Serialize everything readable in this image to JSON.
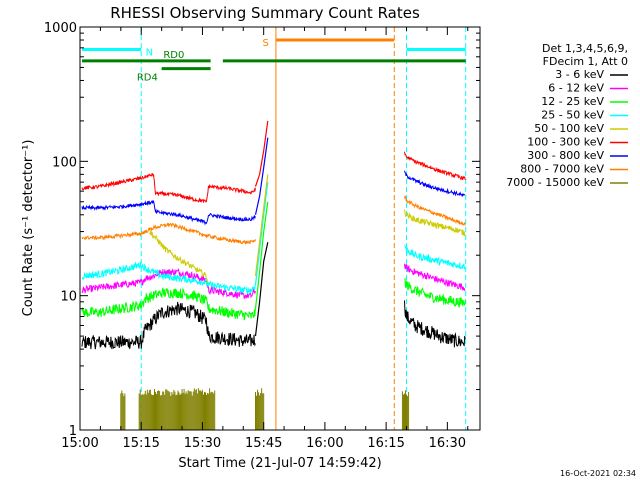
{
  "chart_data": {
    "type": "line",
    "title": "RHESSI Observing Summary Count Rates",
    "xlabel": "Start Time (21-Jul-07 14:59:42)",
    "ylabel": "Count Rate (s⁻¹ detector⁻¹)",
    "yscale": "log",
    "ylim": [
      1,
      1000
    ],
    "xlim_minutes_after_1500": [
      0,
      98
    ],
    "x_ticks": [
      {
        "label": "15:00",
        "min": 0
      },
      {
        "label": "15:15",
        "min": 15
      },
      {
        "label": "15:30",
        "min": 30
      },
      {
        "label": "15:45",
        "min": 45
      },
      {
        "label": "16:00",
        "min": 60
      },
      {
        "label": "16:15",
        "min": 75
      },
      {
        "label": "16:30",
        "min": 90
      }
    ],
    "y_ticks": [
      {
        "label": "1",
        "value": 1
      },
      {
        "label": "10",
        "value": 10
      },
      {
        "label": "100",
        "value": 100
      },
      {
        "label": "1000",
        "value": 1000
      }
    ],
    "legend": {
      "placement": "right",
      "header": [
        "Det 1,3,4,5,6,9,",
        "FDecim 1, Att 0"
      ],
      "entries": [
        {
          "label": "3 - 6 keV",
          "color": "#000000"
        },
        {
          "label": "6 - 12 keV",
          "color": "#ff00ff"
        },
        {
          "label": "12 - 25 keV",
          "color": "#00ff00"
        },
        {
          "label": "25 - 50 keV",
          "color": "#00ffff"
        },
        {
          "label": "50 - 100 keV",
          "color": "#cccc00"
        },
        {
          "label": "100 - 300 keV",
          "color": "#ff0000"
        },
        {
          "label": "300 - 800 keV",
          "color": "#0000ff"
        },
        {
          "label": "800 - 7000 keV",
          "color": "#ff8000"
        },
        {
          "label": "7000 - 15000 keV",
          "color": "#808000"
        }
      ]
    },
    "series": [
      {
        "name": "3 - 6 keV",
        "color": "#000000",
        "noise": 0.12,
        "segments": [
          [
            [
              0.5,
              4.5
            ],
            [
              15,
              4.5
            ],
            [
              16,
              5.5
            ],
            [
              18,
              6.5
            ],
            [
              20,
              7.5
            ],
            [
              24,
              8
            ],
            [
              28,
              7.5
            ],
            [
              31,
              6.5
            ],
            [
              31.5,
              5
            ],
            [
              36,
              4.8
            ],
            [
              40,
              4.6
            ],
            [
              42,
              4.6
            ],
            [
              43,
              4.8
            ]
          ],
          [
            [
              79.5,
              8.5
            ],
            [
              80,
              7
            ],
            [
              82,
              6
            ],
            [
              85,
              5.5
            ],
            [
              88,
              5
            ],
            [
              92,
              4.6
            ],
            [
              94.5,
              4.5
            ]
          ]
        ]
      },
      {
        "name": "6 - 12 keV",
        "color": "#ff00ff",
        "noise": 0.06,
        "segments": [
          [
            [
              0.5,
              11
            ],
            [
              5,
              11.5
            ],
            [
              10,
              12
            ],
            [
              15,
              12.5
            ],
            [
              16,
              13.5
            ],
            [
              18,
              14
            ],
            [
              20,
              15
            ],
            [
              24,
              15
            ],
            [
              28,
              14
            ],
            [
              31,
              13
            ],
            [
              31.5,
              11
            ],
            [
              36,
              10.5
            ],
            [
              40,
              10
            ],
            [
              42,
              10
            ],
            [
              43,
              11
            ]
          ],
          [
            [
              79.5,
              17
            ],
            [
              80,
              16
            ],
            [
              82,
              15
            ],
            [
              85,
              14
            ],
            [
              88,
              13
            ],
            [
              92,
              12
            ],
            [
              94.5,
              11.5
            ]
          ]
        ]
      },
      {
        "name": "12 - 25 keV",
        "color": "#00ff00",
        "noise": 0.09,
        "segments": [
          [
            [
              0.5,
              7.5
            ],
            [
              5,
              7.5
            ],
            [
              10,
              8
            ],
            [
              15,
              8.5
            ],
            [
              16,
              9.5
            ],
            [
              18,
              10
            ],
            [
              20,
              10.5
            ],
            [
              24,
              10.5
            ],
            [
              28,
              10
            ],
            [
              31,
              9
            ],
            [
              31.5,
              8
            ],
            [
              36,
              7.5
            ],
            [
              40,
              7.2
            ],
            [
              42,
              7
            ],
            [
              43,
              7.5
            ]
          ],
          [
            [
              79.5,
              13
            ],
            [
              80,
              12
            ],
            [
              82,
              11
            ],
            [
              85,
              10
            ],
            [
              88,
              9.5
            ],
            [
              92,
              9
            ],
            [
              94.5,
              8.8
            ]
          ]
        ]
      },
      {
        "name": "25 - 50 keV",
        "color": "#00ffff",
        "noise": 0.06,
        "segments": [
          [
            [
              0.5,
              14
            ],
            [
              5,
              14.5
            ],
            [
              10,
              15.5
            ],
            [
              15,
              17
            ],
            [
              16,
              16
            ],
            [
              18,
              15
            ],
            [
              20,
              14
            ],
            [
              24,
              13.5
            ],
            [
              28,
              13
            ],
            [
              31,
              12.5
            ],
            [
              31.5,
              12
            ],
            [
              36,
              11.5
            ],
            [
              40,
              11
            ],
            [
              42,
              11
            ],
            [
              43,
              12
            ]
          ],
          [
            [
              79.5,
              24
            ],
            [
              80,
              22
            ],
            [
              82,
              20
            ],
            [
              85,
              19
            ],
            [
              88,
              18
            ],
            [
              92,
              17
            ],
            [
              94.5,
              16.5
            ]
          ]
        ]
      },
      {
        "name": "50 - 100 keV",
        "color": "#cccc00",
        "noise": 0.05,
        "segments": [
          [
            [
              17,
              30
            ],
            [
              19,
              26
            ],
            [
              21,
              22
            ],
            [
              24,
              19
            ],
            [
              28,
              16
            ],
            [
              31,
              14
            ],
            [
              31.5,
              12
            ]
          ],
          [
            [
              79.5,
              42
            ],
            [
              80,
              40
            ],
            [
              82,
              37
            ],
            [
              85,
              35
            ],
            [
              88,
              33
            ],
            [
              92,
              31
            ],
            [
              94.5,
              29
            ]
          ]
        ]
      },
      {
        "name": "100 - 300 keV",
        "color": "#ff0000",
        "noise": 0.03,
        "segments": [
          [
            [
              0.5,
              63
            ],
            [
              5,
              65
            ],
            [
              10,
              70
            ],
            [
              15,
              75
            ],
            [
              18,
              80
            ],
            [
              18.5,
              58
            ],
            [
              24,
              56
            ],
            [
              28,
              52
            ],
            [
              31,
              50
            ],
            [
              31.5,
              65
            ],
            [
              36,
              63
            ],
            [
              40,
              60
            ],
            [
              42,
              58
            ],
            [
              43,
              62
            ]
          ],
          [
            [
              79.5,
              115
            ],
            [
              80,
              108
            ],
            [
              82,
              100
            ],
            [
              85,
              92
            ],
            [
              88,
              85
            ],
            [
              92,
              78
            ],
            [
              94.5,
              74
            ]
          ]
        ]
      },
      {
        "name": "300 - 800 keV",
        "color": "#0000ff",
        "noise": 0.03,
        "segments": [
          [
            [
              0.5,
              45
            ],
            [
              5,
              45
            ],
            [
              10,
              46
            ],
            [
              15,
              48
            ],
            [
              18,
              50
            ],
            [
              18.5,
              42
            ],
            [
              24,
              40
            ],
            [
              28,
              37
            ],
            [
              31,
              35
            ],
            [
              31.5,
              40
            ],
            [
              36,
              38
            ],
            [
              40,
              37
            ],
            [
              42,
              37
            ],
            [
              43,
              39
            ]
          ],
          [
            [
              79.5,
              83
            ],
            [
              80,
              78
            ],
            [
              82,
              72
            ],
            [
              85,
              66
            ],
            [
              88,
              62
            ],
            [
              92,
              58
            ],
            [
              94.5,
              55
            ]
          ]
        ]
      },
      {
        "name": "800 - 7000 keV",
        "color": "#ff8000",
        "noise": 0.03,
        "segments": [
          [
            [
              0.5,
              27
            ],
            [
              5,
              27
            ],
            [
              10,
              28
            ],
            [
              15,
              29
            ],
            [
              18,
              32
            ],
            [
              22,
              34
            ],
            [
              25,
              32
            ],
            [
              28,
              30
            ],
            [
              31,
              28
            ],
            [
              36,
              26
            ],
            [
              40,
              25
            ],
            [
              42,
              25
            ],
            [
              43,
              26
            ]
          ],
          [
            [
              79.5,
              55
            ],
            [
              80,
              51
            ],
            [
              82,
              47
            ],
            [
              85,
              43
            ],
            [
              88,
              40
            ],
            [
              92,
              36
            ],
            [
              94.5,
              34
            ]
          ]
        ]
      },
      {
        "name": "7000 - 15000 keV",
        "color": "#808000",
        "noise": 0.0,
        "segments": []
      }
    ],
    "flare_spike": [
      {
        "color": "#000000",
        "points": [
          [
            43,
            5
          ],
          [
            44,
            9
          ],
          [
            45,
            18
          ],
          [
            46,
            25
          ]
        ]
      },
      {
        "color": "#00ff00",
        "points": [
          [
            43,
            8
          ],
          [
            44,
            15
          ],
          [
            45,
            30
          ],
          [
            46,
            50
          ]
        ]
      },
      {
        "color": "#00ffff",
        "points": [
          [
            43,
            12
          ],
          [
            44,
            22
          ],
          [
            45,
            40
          ],
          [
            46,
            70
          ]
        ]
      },
      {
        "color": "#cccc00",
        "points": [
          [
            43,
            14
          ],
          [
            44,
            25
          ],
          [
            45,
            45
          ],
          [
            46,
            80
          ]
        ]
      },
      {
        "color": "#0000ff",
        "points": [
          [
            43,
            40
          ],
          [
            44,
            55
          ],
          [
            45,
            90
          ],
          [
            46,
            150
          ]
        ]
      },
      {
        "color": "#ff0000",
        "points": [
          [
            43,
            65
          ],
          [
            44,
            80
          ],
          [
            45,
            120
          ],
          [
            46,
            200
          ]
        ]
      }
    ],
    "background_bursts": {
      "color": "#808000",
      "ranges": [
        [
          10,
          11
        ],
        [
          14.5,
          33
        ],
        [
          43,
          45
        ],
        [
          79,
          80.5
        ]
      ],
      "top_value": 2.05
    },
    "attenuator_vlines": [
      {
        "min": 15,
        "color": "#00ffff"
      },
      {
        "min": 77,
        "color": "#ff8000"
      },
      {
        "min": 80,
        "color": "#00ffff"
      },
      {
        "min": 94.5,
        "color": "#00ffff"
      }
    ],
    "saa_vline": {
      "min": 48,
      "color": "#ff8000"
    },
    "orbit_bars": [
      {
        "label": "N",
        "color": "#00ffff",
        "ranges": [
          [
            0.5,
            15
          ],
          [
            80,
            94.5
          ]
        ],
        "value": 680
      },
      {
        "label": "S",
        "color": "#ff8000",
        "ranges": [
          [
            48,
            77
          ]
        ],
        "value": 800
      },
      {
        "label": "RD0",
        "color": "#008000",
        "ranges": [
          [
            0.5,
            32
          ],
          [
            35,
            94.5
          ]
        ],
        "value": 560
      },
      {
        "label": "RD4",
        "color": "#008000",
        "ranges": [
          [
            20,
            32
          ]
        ],
        "value": 490
      }
    ]
  },
  "footer": {
    "timestamp": "16-Oct-2021 02:34"
  }
}
